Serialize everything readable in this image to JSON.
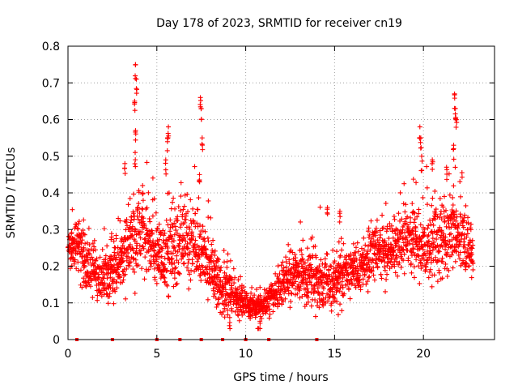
{
  "chart_data": {
    "type": "scatter",
    "title": "Day 178 of 2023, SRMTID for receiver cn19",
    "xlabel": "GPS time / hours",
    "ylabel": "SRMTID / TECUs",
    "xlim": [
      0,
      24
    ],
    "ylim": [
      0,
      0.8
    ],
    "grid": true,
    "marker": "+",
    "color": "#ff0000",
    "x_ticks": [
      0,
      5,
      10,
      15,
      20
    ],
    "x_tick_labels": [
      "0",
      "5",
      "10",
      "15",
      "20"
    ],
    "y_ticks": [
      0,
      0.1,
      0.2,
      0.3,
      0.4,
      0.5,
      0.6,
      0.7,
      0.8
    ],
    "y_tick_labels": [
      "0",
      "0.1",
      "0.2",
      "0.3",
      "0.4",
      "0.5",
      "0.6",
      "0.7",
      "0.8"
    ],
    "series": [
      {
        "name": "SRMTID",
        "profile_hours": [
          0,
          0.5,
          1,
          1.5,
          2,
          2.5,
          3,
          3.5,
          4,
          4.5,
          5,
          5.5,
          6,
          6.5,
          7,
          7.5,
          8,
          8.5,
          9,
          9.5,
          10,
          10.5,
          11,
          11.5,
          12,
          12.5,
          13,
          13.5,
          14,
          14.5,
          15,
          15.5,
          16,
          16.5,
          17,
          17.5,
          18,
          18.5,
          19,
          19.5,
          20,
          20.5,
          21,
          21.5,
          22,
          22.5,
          22.8
        ],
        "profile_typical": [
          0.26,
          0.24,
          0.2,
          0.18,
          0.17,
          0.18,
          0.22,
          0.27,
          0.3,
          0.27,
          0.23,
          0.22,
          0.25,
          0.27,
          0.26,
          0.24,
          0.2,
          0.15,
          0.13,
          0.11,
          0.1,
          0.09,
          0.09,
          0.12,
          0.15,
          0.17,
          0.18,
          0.17,
          0.16,
          0.15,
          0.16,
          0.17,
          0.18,
          0.2,
          0.22,
          0.24,
          0.25,
          0.27,
          0.28,
          0.27,
          0.25,
          0.27,
          0.28,
          0.3,
          0.3,
          0.24,
          0.22
        ],
        "profile_spread": [
          0.06,
          0.06,
          0.06,
          0.06,
          0.06,
          0.06,
          0.07,
          0.09,
          0.1,
          0.09,
          0.08,
          0.08,
          0.09,
          0.09,
          0.09,
          0.08,
          0.07,
          0.06,
          0.05,
          0.04,
          0.03,
          0.03,
          0.03,
          0.04,
          0.05,
          0.06,
          0.06,
          0.06,
          0.07,
          0.07,
          0.06,
          0.06,
          0.06,
          0.06,
          0.06,
          0.07,
          0.07,
          0.08,
          0.08,
          0.09,
          0.09,
          0.09,
          0.09,
          0.09,
          0.09,
          0.08,
          0.07
        ],
        "peaks": [
          {
            "x": 3.8,
            "y": 0.75
          },
          {
            "x": 3.85,
            "y": 0.71
          },
          {
            "x": 3.75,
            "y": 0.65
          },
          {
            "x": 3.8,
            "y": 0.57
          },
          {
            "x": 3.78,
            "y": 0.51
          },
          {
            "x": 5.5,
            "y": 0.49
          },
          {
            "x": 5.6,
            "y": 0.55
          },
          {
            "x": 5.65,
            "y": 0.58
          },
          {
            "x": 7.45,
            "y": 0.66
          },
          {
            "x": 7.5,
            "y": 0.63
          },
          {
            "x": 7.55,
            "y": 0.55
          },
          {
            "x": 7.4,
            "y": 0.45
          },
          {
            "x": 4.2,
            "y": 0.42
          },
          {
            "x": 3.2,
            "y": 0.48
          },
          {
            "x": 14.6,
            "y": 0.36
          },
          {
            "x": 15.3,
            "y": 0.35
          },
          {
            "x": 19.8,
            "y": 0.58
          },
          {
            "x": 19.85,
            "y": 0.55
          },
          {
            "x": 19.9,
            "y": 0.5
          },
          {
            "x": 21.75,
            "y": 0.67
          },
          {
            "x": 21.8,
            "y": 0.63
          },
          {
            "x": 21.85,
            "y": 0.6
          },
          {
            "x": 21.7,
            "y": 0.53
          },
          {
            "x": 21.3,
            "y": 0.47
          },
          {
            "x": 20.5,
            "y": 0.49
          },
          {
            "x": 10.7,
            "y": 0.03
          },
          {
            "x": 10.8,
            "y": 0.05
          },
          {
            "x": 9.1,
            "y": 0.06
          }
        ]
      }
    ],
    "zero_markers_x": [
      0.5,
      2.5,
      5.0,
      6.3,
      7.5,
      8.7,
      10.0,
      11.3,
      14.0
    ]
  }
}
